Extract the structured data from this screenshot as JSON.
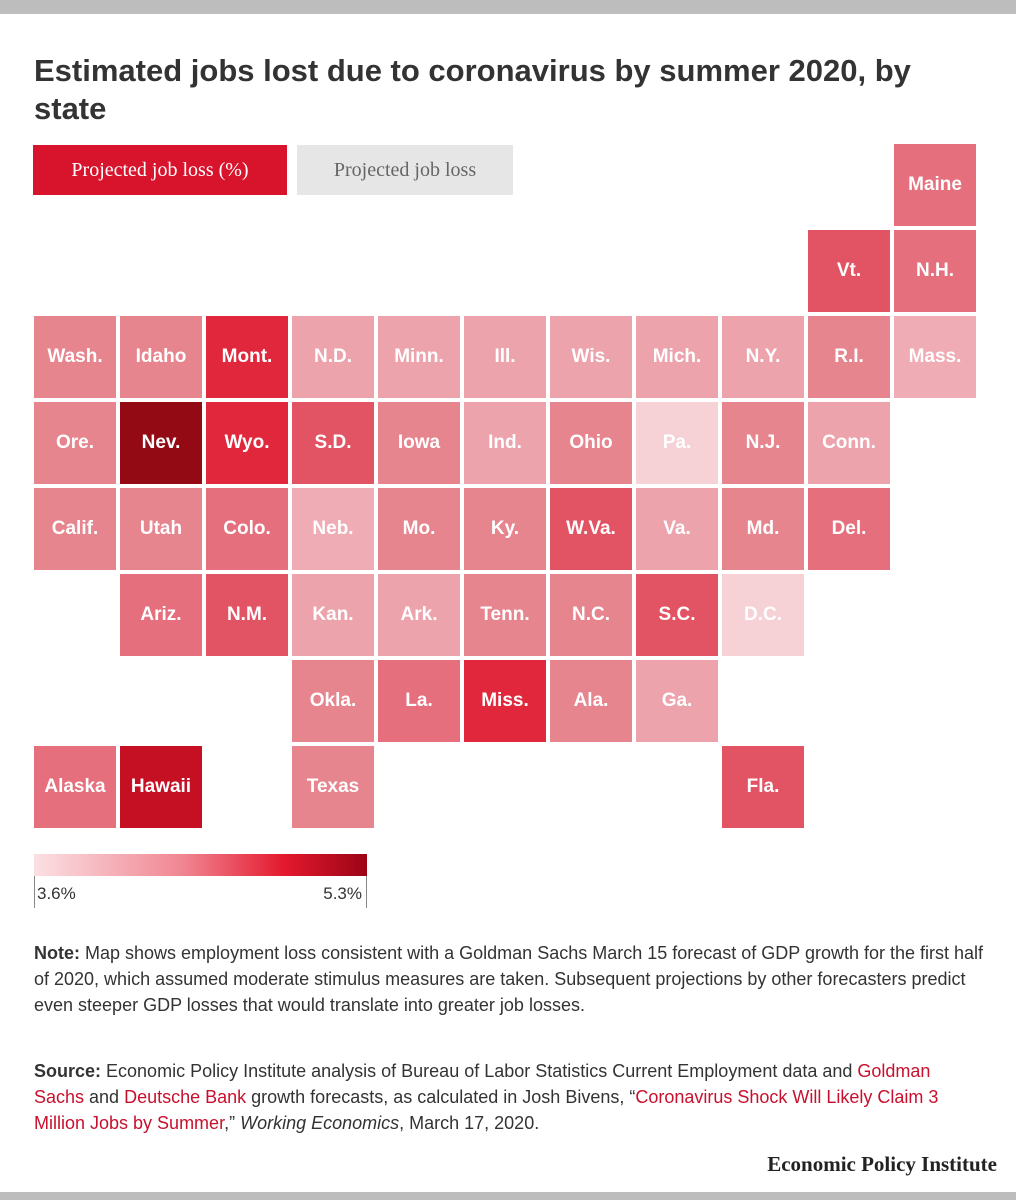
{
  "title": "Estimated jobs lost due to coronavirus by summer 2020, by state",
  "tabs": {
    "active": "Projected job loss (%)",
    "inactive": "Projected job loss"
  },
  "colors": {
    "c1": "#f6d2d6",
    "c2": "#efacb4",
    "c3": "#eda3ac",
    "c4": "#e7858f",
    "c5": "#e56f7d",
    "c6": "#e25464",
    "c7": "#e0273c",
    "c8": "#c50f23",
    "c9": "#930a14"
  },
  "states": [
    {
      "label": "Maine",
      "shade": "c5"
    },
    {
      "label": "Vt.",
      "shade": "c6"
    },
    {
      "label": "N.H.",
      "shade": "c5"
    },
    {
      "label": "Wash.",
      "shade": "c4"
    },
    {
      "label": "Idaho",
      "shade": "c4"
    },
    {
      "label": "Mont.",
      "shade": "c7"
    },
    {
      "label": "N.D.",
      "shade": "c3"
    },
    {
      "label": "Minn.",
      "shade": "c3"
    },
    {
      "label": "Ill.",
      "shade": "c3"
    },
    {
      "label": "Wis.",
      "shade": "c3"
    },
    {
      "label": "Mich.",
      "shade": "c3"
    },
    {
      "label": "N.Y.",
      "shade": "c3"
    },
    {
      "label": "R.I.",
      "shade": "c4"
    },
    {
      "label": "Mass.",
      "shade": "c2"
    },
    {
      "label": "Ore.",
      "shade": "c4"
    },
    {
      "label": "Nev.",
      "shade": "c9"
    },
    {
      "label": "Wyo.",
      "shade": "c7"
    },
    {
      "label": "S.D.",
      "shade": "c6"
    },
    {
      "label": "Iowa",
      "shade": "c4"
    },
    {
      "label": "Ind.",
      "shade": "c3"
    },
    {
      "label": "Ohio",
      "shade": "c4"
    },
    {
      "label": "Pa.",
      "shade": "c1"
    },
    {
      "label": "N.J.",
      "shade": "c4"
    },
    {
      "label": "Conn.",
      "shade": "c3"
    },
    {
      "label": "Calif.",
      "shade": "c4"
    },
    {
      "label": "Utah",
      "shade": "c4"
    },
    {
      "label": "Colo.",
      "shade": "c5"
    },
    {
      "label": "Neb.",
      "shade": "c2"
    },
    {
      "label": "Mo.",
      "shade": "c4"
    },
    {
      "label": "Ky.",
      "shade": "c4"
    },
    {
      "label": "W.Va.",
      "shade": "c6"
    },
    {
      "label": "Va.",
      "shade": "c3"
    },
    {
      "label": "Md.",
      "shade": "c4"
    },
    {
      "label": "Del.",
      "shade": "c5"
    },
    {
      "label": "Ariz.",
      "shade": "c5"
    },
    {
      "label": "N.M.",
      "shade": "c6"
    },
    {
      "label": "Kan.",
      "shade": "c3"
    },
    {
      "label": "Ark.",
      "shade": "c3"
    },
    {
      "label": "Tenn.",
      "shade": "c4"
    },
    {
      "label": "N.C.",
      "shade": "c4"
    },
    {
      "label": "S.C.",
      "shade": "c6"
    },
    {
      "label": "D.C.",
      "shade": "c1"
    },
    {
      "label": "Okla.",
      "shade": "c4"
    },
    {
      "label": "La.",
      "shade": "c5"
    },
    {
      "label": "Miss.",
      "shade": "c7"
    },
    {
      "label": "Ala.",
      "shade": "c4"
    },
    {
      "label": "Ga.",
      "shade": "c3"
    },
    {
      "label": "Alaska",
      "shade": "c5"
    },
    {
      "label": "Hawaii",
      "shade": "c8"
    },
    {
      "label": "Texas",
      "shade": "c4"
    },
    {
      "label": "Fla.",
      "shade": "c6"
    }
  ],
  "legend": {
    "min_label": "3.6%",
    "max_label": "5.3%"
  },
  "note": {
    "label": "Note:",
    "text": " Map shows employment loss consistent with a Goldman Sachs March 15 forecast of GDP growth for the first half of 2020, which assumed moderate stimulus measures are taken. Subsequent projections by other forecasters predict even steeper GDP losses that would translate into greater job losses."
  },
  "source": {
    "label": "Source:",
    "t1": " Economic Policy Institute analysis of Bureau of Labor Statistics Current Employment data and ",
    "link1": "Goldman Sachs",
    "t2": " and ",
    "link2": "Deutsche Bank",
    "t3": " growth forecasts, as calculated in Josh Bivens, “",
    "link3": "Coronavirus Shock Will Likely Claim 3 Million Jobs by Summer",
    "t4": ",” ",
    "journal": "Working Economics",
    "t5": ", March 17, 2020."
  },
  "footer": {
    "org": "Economic Policy Institute"
  }
}
